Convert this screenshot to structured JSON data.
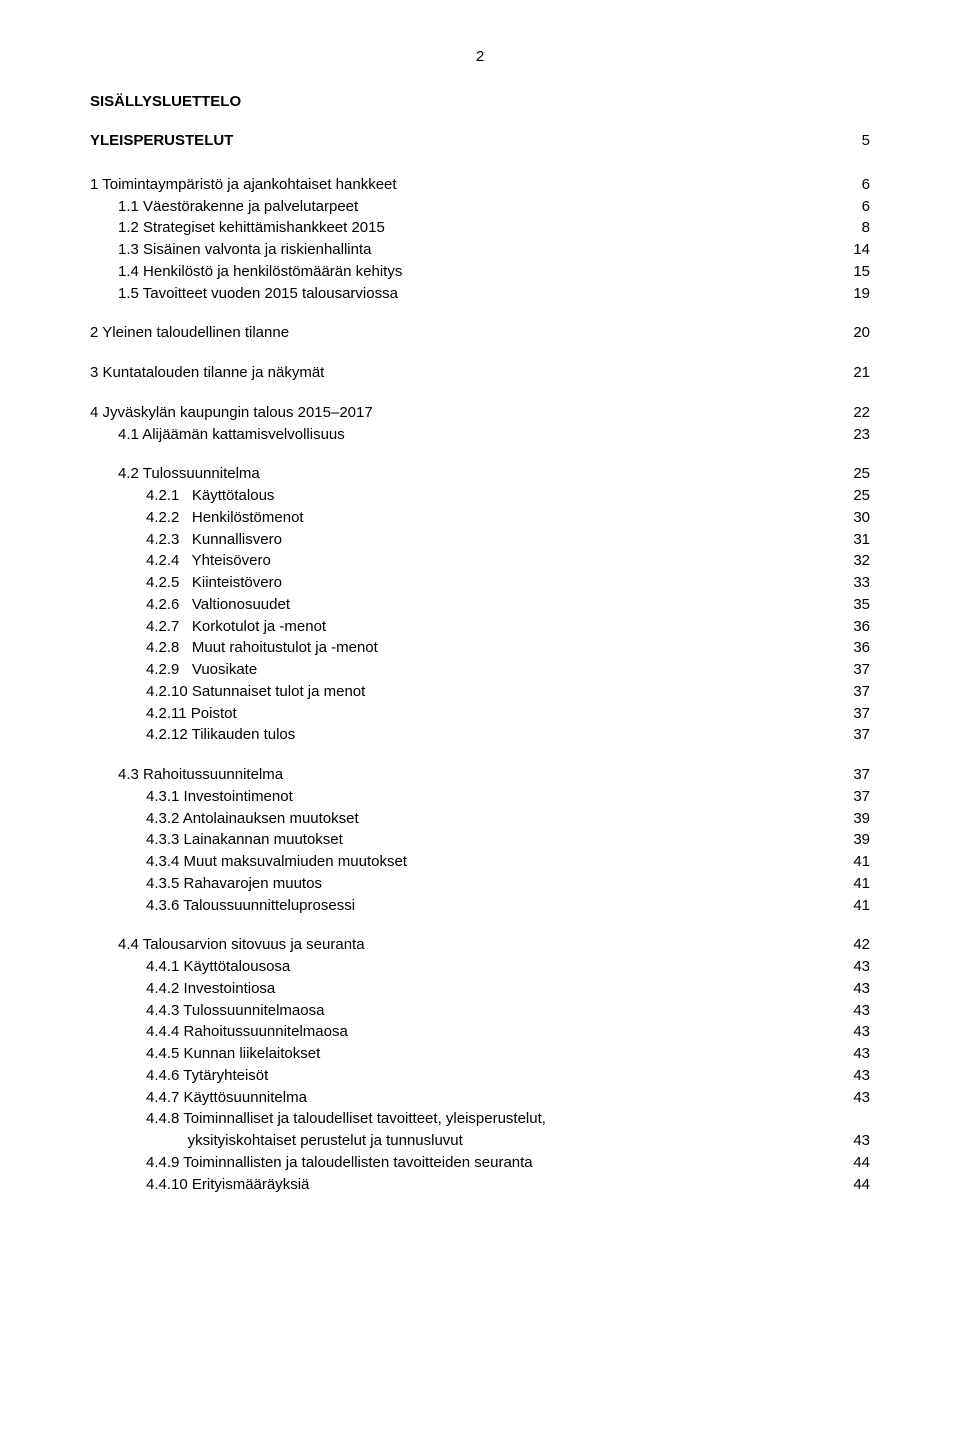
{
  "page_number": "2",
  "title_main": "SISÄLLYSLUETTELO",
  "section_heading": "YLEISPERUSTELUT",
  "section_heading_page": "5",
  "toc": [
    {
      "block": 1,
      "indent": 0,
      "label": "1 Toimintaympäristö ja ajankohtaiset hankkeet",
      "page": "6"
    },
    {
      "block": 1,
      "indent": 1,
      "label": "1.1 Väestörakenne ja palvelutarpeet",
      "page": "6"
    },
    {
      "block": 1,
      "indent": 1,
      "label": "1.2 Strategiset kehittämishankkeet 2015",
      "page": "8"
    },
    {
      "block": 1,
      "indent": 1,
      "label": "1.3 Sisäinen valvonta ja riskienhallinta",
      "page": "14"
    },
    {
      "block": 1,
      "indent": 1,
      "label": "1.4 Henkilöstö ja henkilöstömäärän kehitys",
      "page": "15"
    },
    {
      "block": 1,
      "indent": 1,
      "label": "1.5 Tavoitteet vuoden 2015 talousarviossa",
      "page": "19"
    },
    {
      "block": 2,
      "indent": 0,
      "label": "2 Yleinen taloudellinen tilanne",
      "page": "20"
    },
    {
      "block": 3,
      "indent": 0,
      "label": "3 Kuntatalouden tilanne ja näkymät",
      "page": "21"
    },
    {
      "block": 4,
      "indent": 0,
      "label": "4 Jyväskylän kaupungin talous 2015–2017",
      "page": "22"
    },
    {
      "block": 4,
      "indent": 1,
      "label": "4.1 Alijäämän kattamisvelvollisuus",
      "page": "23"
    },
    {
      "block": 5,
      "indent": 1,
      "label": "4.2 Tulossuunnitelma",
      "page": "25"
    },
    {
      "block": 5,
      "indent": 2,
      "label": "4.2.1   Käyttötalous",
      "page": "25"
    },
    {
      "block": 5,
      "indent": 2,
      "label": "4.2.2   Henkilöstömenot",
      "page": "30"
    },
    {
      "block": 5,
      "indent": 2,
      "label": "4.2.3   Kunnallisvero",
      "page": "31"
    },
    {
      "block": 5,
      "indent": 2,
      "label": "4.2.4   Yhteisövero",
      "page": "32"
    },
    {
      "block": 5,
      "indent": 2,
      "label": "4.2.5   Kiinteistövero",
      "page": "33"
    },
    {
      "block": 5,
      "indent": 2,
      "label": "4.2.6   Valtionosuudet",
      "page": "35"
    },
    {
      "block": 5,
      "indent": 2,
      "label": "4.2.7   Korkotulot ja -menot",
      "page": "36"
    },
    {
      "block": 5,
      "indent": 2,
      "label": "4.2.8   Muut rahoitustulot ja -menot",
      "page": "36"
    },
    {
      "block": 5,
      "indent": 2,
      "label": "4.2.9   Vuosikate",
      "page": "37"
    },
    {
      "block": 5,
      "indent": 2,
      "label": "4.2.10 Satunnaiset tulot ja menot",
      "page": "37"
    },
    {
      "block": 5,
      "indent": 2,
      "label": "4.2.11 Poistot",
      "page": "37"
    },
    {
      "block": 5,
      "indent": 2,
      "label": "4.2.12 Tilikauden tulos",
      "page": "37"
    },
    {
      "block": 6,
      "indent": 1,
      "label": "4.3 Rahoitussuunnitelma",
      "page": "37"
    },
    {
      "block": 6,
      "indent": 2,
      "label": "4.3.1 Investointimenot",
      "page": "37"
    },
    {
      "block": 6,
      "indent": 2,
      "label": "4.3.2 Antolainauksen muutokset",
      "page": "39"
    },
    {
      "block": 6,
      "indent": 2,
      "label": "4.3.3 Lainakannan muutokset",
      "page": "39"
    },
    {
      "block": 6,
      "indent": 2,
      "label": "4.3.4 Muut maksuvalmiuden muutokset",
      "page": "41"
    },
    {
      "block": 6,
      "indent": 2,
      "label": "4.3.5 Rahavarojen muutos",
      "page": "41"
    },
    {
      "block": 6,
      "indent": 2,
      "label": "4.3.6 Taloussuunnitteluprosessi",
      "page": "41"
    },
    {
      "block": 7,
      "indent": 1,
      "label": "4.4 Talousarvion sitovuus ja seuranta",
      "page": "42"
    },
    {
      "block": 7,
      "indent": 2,
      "label": "4.4.1 Käyttötalousosa",
      "page": "43"
    },
    {
      "block": 7,
      "indent": 2,
      "label": "4.4.2 Investointiosa",
      "page": "43"
    },
    {
      "block": 7,
      "indent": 2,
      "label": "4.4.3 Tulossuunnitelmaosa",
      "page": "43"
    },
    {
      "block": 7,
      "indent": 2,
      "label": "4.4.4 Rahoitussuunnitelmaosa",
      "page": "43"
    },
    {
      "block": 7,
      "indent": 2,
      "label": "4.4.5 Kunnan liikelaitokset",
      "page": "43"
    },
    {
      "block": 7,
      "indent": 2,
      "label": "4.4.6 Tytäryhteisöt",
      "page": "43"
    },
    {
      "block": 7,
      "indent": 2,
      "label": "4.4.7 Käyttösuunnitelma",
      "page": "43"
    },
    {
      "block": 7,
      "indent": 2,
      "label": "4.4.8 Toiminnalliset ja taloudelliset tavoitteet, yleisperustelut,",
      "page": ""
    },
    {
      "block": 7,
      "indent": 2,
      "label": "          yksityiskohtaiset perustelut ja tunnusluvut",
      "page": "43"
    },
    {
      "block": 7,
      "indent": 2,
      "label": "4.4.9 Toiminnallisten ja taloudellisten tavoitteiden seuranta",
      "page": "44"
    },
    {
      "block": 7,
      "indent": 2,
      "label": "4.4.10 Erityismääräyksiä",
      "page": "44"
    }
  ]
}
